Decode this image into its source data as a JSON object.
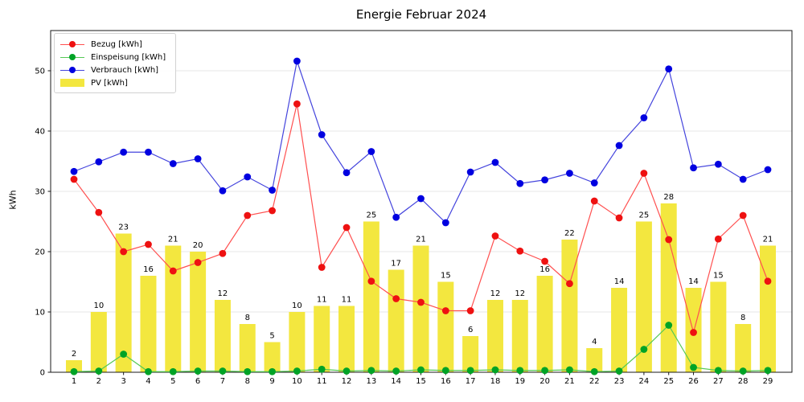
{
  "title": "Energie Februar 2024",
  "ylabel": "kWh",
  "chart_data": {
    "type": "bar+line",
    "title": "Energie Februar 2024",
    "xlabel": "",
    "ylabel": "kWh",
    "x": [
      1,
      2,
      3,
      4,
      5,
      6,
      7,
      8,
      9,
      10,
      11,
      12,
      13,
      14,
      15,
      16,
      17,
      18,
      19,
      20,
      21,
      22,
      23,
      24,
      25,
      26,
      27,
      28,
      29
    ],
    "yticks": [
      0,
      10,
      20,
      30,
      40,
      50
    ],
    "ylim": [
      0,
      56.7
    ],
    "grid": true,
    "legend_position": "upper left",
    "series": [
      {
        "name": "Bezug [kWh]",
        "type": "line",
        "color": "#ee1111",
        "line_color": "#ff5050",
        "values": [
          32,
          26.5,
          20,
          21.2,
          16.8,
          18.2,
          19.7,
          26,
          26.8,
          44.5,
          17.4,
          24,
          15.1,
          12.2,
          11.6,
          10.2,
          10.2,
          22.6,
          20.1,
          18.4,
          14.7,
          28.4,
          25.6,
          33,
          22,
          6.6,
          22.1,
          26,
          15.1
        ]
      },
      {
        "name": "Einspeisung [kWh]",
        "type": "line",
        "color": "#00a326",
        "line_color": "#55c955",
        "values": [
          0.1,
          0.2,
          3,
          0.1,
          0.1,
          0.2,
          0.2,
          0.1,
          0.1,
          0.2,
          0.5,
          0.2,
          0.3,
          0.2,
          0.4,
          0.3,
          0.3,
          0.4,
          0.3,
          0.3,
          0.4,
          0.1,
          0.2,
          3.8,
          7.8,
          0.8,
          0.3,
          0.2,
          0.3
        ]
      },
      {
        "name": "Verbrauch [kWh]",
        "type": "line",
        "color": "#0000e0",
        "line_color": "#4444dd",
        "values": [
          33.3,
          34.9,
          36.5,
          36.5,
          34.6,
          35.4,
          30.1,
          32.4,
          30.2,
          51.6,
          39.4,
          33.1,
          36.6,
          25.7,
          28.8,
          24.8,
          33.2,
          34.8,
          31.3,
          31.9,
          33,
          31.4,
          37.6,
          42.2,
          50.3,
          33.9,
          34.5,
          32,
          33.6
        ]
      },
      {
        "name": "PV [kWh]",
        "type": "bar",
        "color": "#f3e73f",
        "values": [
          2,
          10,
          23,
          16,
          21,
          20,
          12,
          8,
          5,
          10,
          11,
          11,
          25,
          17,
          21,
          15,
          6,
          12,
          12,
          16,
          22,
          4,
          14,
          25,
          28,
          14,
          15,
          8,
          21
        ],
        "labels": [
          "2",
          "10",
          "23",
          "16",
          "21",
          "20",
          "12",
          "8",
          "5",
          "10",
          "11",
          "11",
          "25",
          "17",
          "21",
          "15",
          "6",
          "12",
          "12",
          "16",
          "22",
          "4",
          "14",
          "25",
          "28",
          "14",
          "15",
          "8",
          "21"
        ]
      }
    ],
    "axis_color": "#1a1a1a",
    "grid_color": "#e7e7e7",
    "tick_label_color": "#000000",
    "bar_label_color": "#000000"
  }
}
